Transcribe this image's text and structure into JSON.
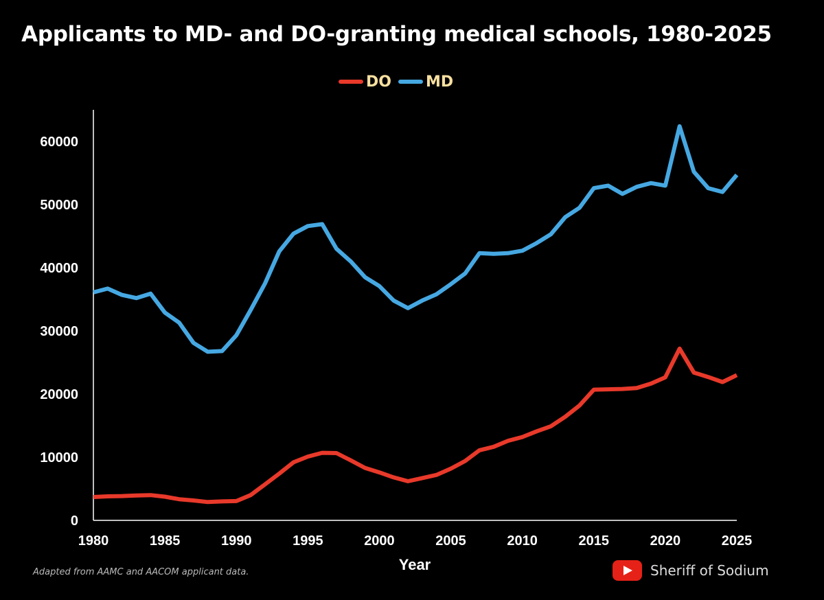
{
  "chart_data": {
    "type": "line",
    "title": "Applicants to MD- and DO-granting medical schools, 1980-2025",
    "xlabel": "Year",
    "ylabel": "",
    "xlim": [
      1980,
      2025
    ],
    "ylim": [
      0,
      65000
    ],
    "xticks": [
      "1980",
      "1985",
      "1990",
      "1995",
      "2000",
      "2005",
      "2010",
      "2015",
      "2020",
      "2025"
    ],
    "yticks": [
      "0",
      "10000",
      "20000",
      "30000",
      "40000",
      "50000",
      "60000"
    ],
    "x": [
      1980,
      1981,
      1982,
      1983,
      1984,
      1985,
      1986,
      1987,
      1988,
      1989,
      1990,
      1991,
      1992,
      1993,
      1994,
      1995,
      1996,
      1997,
      1998,
      1999,
      2000,
      2001,
      2002,
      2003,
      2004,
      2005,
      2006,
      2007,
      2008,
      2009,
      2010,
      2011,
      2012,
      2013,
      2014,
      2015,
      2016,
      2017,
      2018,
      2019,
      2020,
      2021,
      2022,
      2023,
      2024,
      2025
    ],
    "series": [
      {
        "name": "DO",
        "color": "#e8392a",
        "values": [
          3700,
          3800,
          3850,
          3950,
          4000,
          3750,
          3350,
          3150,
          2900,
          3000,
          3050,
          4000,
          5700,
          7400,
          9200,
          10100,
          10700,
          10650,
          9500,
          8300,
          7600,
          6800,
          6200,
          6700,
          7200,
          8200,
          9400,
          11100,
          11650,
          12600,
          13200,
          14100,
          14900,
          16400,
          18200,
          20700,
          20750,
          20800,
          20950,
          21650,
          22650,
          27200,
          23400,
          22700,
          21900,
          23000
        ]
      },
      {
        "name": "MD",
        "color": "#46a8e2",
        "values": [
          36100,
          36700,
          35700,
          35200,
          35900,
          32900,
          31300,
          28100,
          26700,
          26800,
          29300,
          33300,
          37500,
          42600,
          45400,
          46600,
          46900,
          43000,
          41000,
          38500,
          37100,
          34800,
          33600,
          34800,
          35800,
          37400,
          39100,
          42300,
          42200,
          42300,
          42700,
          43900,
          45300,
          48000,
          49500,
          52600,
          53000,
          51700,
          52800,
          53400,
          53000,
          62400,
          55200,
          52600,
          52000,
          54700
        ]
      }
    ],
    "legend_position": "top-center",
    "grid": false
  },
  "footnote": "Adapted from AAMC and AACOM applicant data.",
  "credit": "Sheriff of Sodium"
}
